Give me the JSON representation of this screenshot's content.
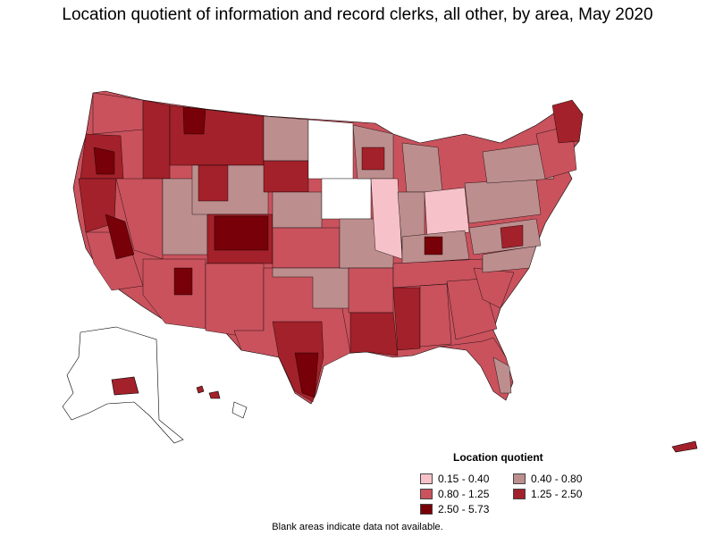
{
  "title": "Location quotient of information and record clerks, all other, by area, May 2020",
  "legend": {
    "title": "Location quotient",
    "items": [
      {
        "label": "0.15 - 0.40",
        "color": "#f6c1c8"
      },
      {
        "label": "0.40 - 0.80",
        "color": "#bd8e8e"
      },
      {
        "label": "0.80 - 1.25",
        "color": "#c9525d"
      },
      {
        "label": "1.25 - 2.50",
        "color": "#a3212a"
      },
      {
        "label": "2.50 - 5.73",
        "color": "#780008"
      }
    ]
  },
  "footnote": "Blank areas indicate data not available.",
  "colors": {
    "no_data": "#ffffff",
    "border": "#000000"
  }
}
